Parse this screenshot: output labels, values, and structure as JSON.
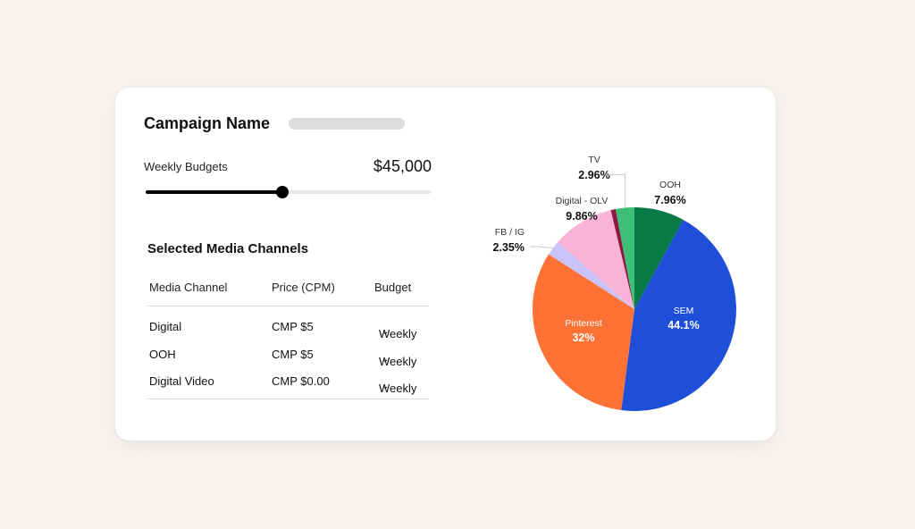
{
  "campaign": {
    "title": "Campaign Name"
  },
  "budget": {
    "label": "Weekly Budgets",
    "value": "$45,000",
    "slider_fraction": 0.48
  },
  "media": {
    "title": "Selected Media Channels",
    "headers": [
      "Media Channel",
      "Price (CPM)",
      "Budget"
    ],
    "rows": [
      {
        "channel": "Digital",
        "price": "CMP $5",
        "budget": "Weekly"
      },
      {
        "channel": "OOH",
        "price": "CMP $5",
        "budget": "Weekly"
      },
      {
        "channel": "Digital Video",
        "price": "CMP $0.00",
        "budget": "Weekly"
      }
    ],
    "dropdown_icon": "chevron-down-icon"
  },
  "chart_data": {
    "type": "pie",
    "slices": [
      {
        "name": "OOH",
        "value": 7.96,
        "label": "7.96%",
        "color": "#087a45"
      },
      {
        "name": "SEM",
        "value": 44.1,
        "label": "44.1%",
        "color": "#1f4fd8"
      },
      {
        "name": "Pinterest",
        "value": 32,
        "label": "32%",
        "color": "#ff7236"
      },
      {
        "name": "FB / IG",
        "value": 2.35,
        "label": "2.35%",
        "color": "#c9c2fb"
      },
      {
        "name": "Digital - OLV",
        "value": 9.86,
        "label": "9.86%",
        "color": "#f9b3d6"
      },
      {
        "name": "",
        "value": 0.77,
        "label": "",
        "color": "#8e1840"
      },
      {
        "name": "TV",
        "value": 2.96,
        "label": "2.96%",
        "color": "#3fbe78"
      }
    ]
  }
}
